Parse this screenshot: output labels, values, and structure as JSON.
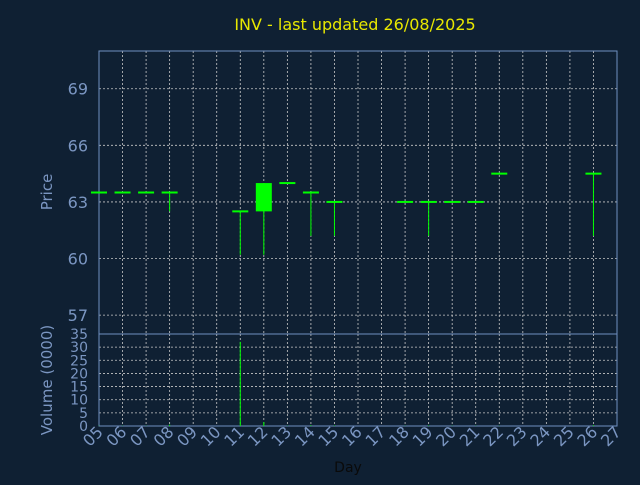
{
  "chart_data": [
    {
      "type": "candlestick",
      "title": "INV - last updated 26/08/2025",
      "ylabel": "Price",
      "ylim": [
        56,
        71
      ],
      "yticks": [
        57,
        60,
        63,
        66,
        69
      ],
      "grid": true,
      "x_categories": [
        "05",
        "06",
        "07",
        "08",
        "09",
        "10",
        "11",
        "12",
        "13",
        "14",
        "15",
        "16",
        "17",
        "18",
        "19",
        "20",
        "21",
        "22",
        "23",
        "24",
        "25",
        "26",
        "27"
      ],
      "candles": [
        {
          "day": "05",
          "open": 63.5,
          "high": 63.5,
          "low": 63.5,
          "close": 63.5
        },
        {
          "day": "06",
          "open": 63.5,
          "high": 63.5,
          "low": 63.5,
          "close": 63.5
        },
        {
          "day": "07",
          "open": 63.5,
          "high": 63.5,
          "low": 63.5,
          "close": 63.5
        },
        {
          "day": "08",
          "open": 63.5,
          "high": 63.5,
          "low": 62.5,
          "close": 63.5
        },
        {
          "day": "11",
          "open": 62.5,
          "high": 62.5,
          "low": 60.2,
          "close": 62.5
        },
        {
          "day": "12",
          "open": 62.5,
          "high": 64.0,
          "low": 60.2,
          "close": 64.0
        },
        {
          "day": "13",
          "open": 64.0,
          "high": 64.0,
          "low": 64.0,
          "close": 64.0
        },
        {
          "day": "14",
          "open": 63.5,
          "high": 63.5,
          "low": 61.2,
          "close": 63.5
        },
        {
          "day": "15",
          "open": 63.0,
          "high": 63.0,
          "low": 61.2,
          "close": 63.0
        },
        {
          "day": "18",
          "open": 63.0,
          "high": 63.0,
          "low": 63.0,
          "close": 63.0
        },
        {
          "day": "19",
          "open": 63.0,
          "high": 63.0,
          "low": 61.2,
          "close": 63.0
        },
        {
          "day": "20",
          "open": 63.0,
          "high": 63.0,
          "low": 63.0,
          "close": 63.0
        },
        {
          "day": "21",
          "open": 63.0,
          "high": 63.0,
          "low": 63.0,
          "close": 63.0
        },
        {
          "day": "22",
          "open": 64.5,
          "high": 64.5,
          "low": 64.5,
          "close": 64.5
        },
        {
          "day": "26",
          "open": 64.5,
          "high": 64.5,
          "low": 61.2,
          "close": 64.5
        }
      ]
    },
    {
      "type": "bar",
      "ylabel": "Volume (0000)",
      "ylim": [
        0,
        35
      ],
      "yticks": [
        0,
        5,
        10,
        15,
        20,
        25,
        30,
        35
      ],
      "xlabel": "Day",
      "grid": true,
      "categories": [
        "05",
        "06",
        "07",
        "08",
        "09",
        "10",
        "11",
        "12",
        "13",
        "14",
        "15",
        "16",
        "17",
        "18",
        "19",
        "20",
        "21",
        "22",
        "23",
        "24",
        "25",
        "26",
        "27"
      ],
      "values": [
        0.1,
        0.1,
        0.1,
        0.5,
        0,
        0,
        32,
        1.5,
        0.1,
        0.3,
        0.2,
        0,
        0,
        0.1,
        0.2,
        0.1,
        0.1,
        0.1,
        0,
        0,
        0,
        0.3,
        0
      ]
    }
  ],
  "colors": {
    "background": "#0f2033",
    "frame": "#6f8fc0",
    "grid": "#c8c8c8",
    "candle": "#00ff00",
    "title": "#e8e800",
    "tick": "#7b96c2"
  }
}
